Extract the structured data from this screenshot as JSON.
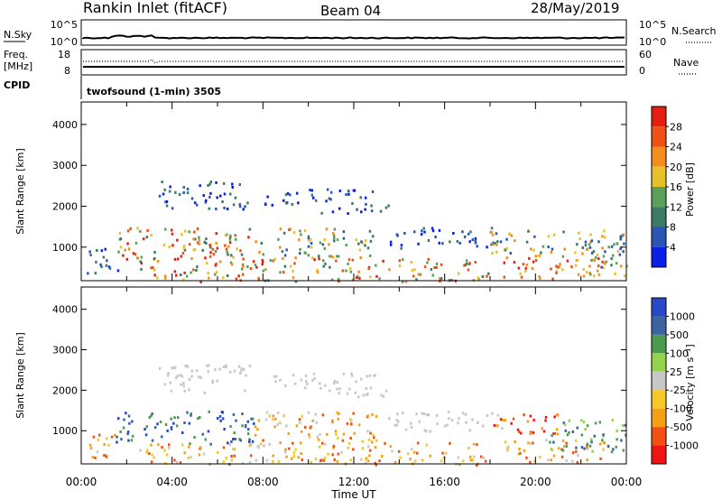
{
  "header": {
    "station": "Rankin Inlet (fitACF)",
    "beam": "Beam 04",
    "date": "28/May/2019"
  },
  "strip_panels": {
    "noise": {
      "left_label": "N.Sky",
      "left_ticks": [
        "10^5",
        "10^0"
      ],
      "right_label": "N.Search",
      "right_ticks": [
        "10^5",
        "10^0"
      ]
    },
    "freq": {
      "left_label_line1": "Freq.",
      "left_label_line2": "[MHz]",
      "left_ticks": [
        "18",
        "8"
      ],
      "right_label": "Nave",
      "right_ticks": [
        "60",
        "0"
      ]
    },
    "cpid": {
      "label": "CPID",
      "value": "twofsound (1-min) 3505"
    }
  },
  "colors": {
    "power_scale": [
      "#0a1fe8",
      "#2b55b4",
      "#3d7a64",
      "#5aa05a",
      "#e6c228",
      "#f58c1e",
      "#ee5014",
      "#e61e12"
    ],
    "velocity_scale": [
      "#f01414",
      "#f55014",
      "#f5a014",
      "#f5c828",
      "#c8c8c8",
      "#96d24b",
      "#4b9b50",
      "#3c64a0",
      "#2848c8"
    ]
  },
  "chart_data": [
    {
      "type": "heatmap",
      "title": "Power",
      "ylabel": "Slant Range [km]",
      "ylim": [
        180,
        4550
      ],
      "yticks": [
        1000,
        2000,
        3000,
        4000
      ],
      "xlim": [
        "00:00",
        "24:00"
      ],
      "colorbar": {
        "label": "Power [dB]",
        "ticks": [
          "4",
          "8",
          "12",
          "16",
          "20",
          "24",
          "28"
        ],
        "range": [
          0,
          32
        ]
      },
      "regions": [
        {
          "t0": 0.2,
          "t1": 1.6,
          "r0": 300,
          "r1": 1000,
          "level": "low"
        },
        {
          "t0": 1.5,
          "t1": 7.6,
          "r0": 700,
          "r1": 1500,
          "level": "high"
        },
        {
          "t0": 4.6,
          "t1": 6.0,
          "r0": 750,
          "r1": 1250,
          "level": "very-high"
        },
        {
          "t0": 2.5,
          "t1": 7.6,
          "r0": 180,
          "r1": 700,
          "level": "high"
        },
        {
          "t0": 3.4,
          "t1": 7.6,
          "r0": 1950,
          "r1": 2650,
          "level": "low"
        },
        {
          "t0": 8.0,
          "t1": 13.0,
          "r0": 2050,
          "r1": 2450,
          "level": "low"
        },
        {
          "t0": 10.5,
          "t1": 13.5,
          "r0": 1850,
          "r1": 2100,
          "level": "low"
        },
        {
          "t0": 7.6,
          "t1": 13.0,
          "r0": 750,
          "r1": 1500,
          "level": "mid"
        },
        {
          "t0": 7.6,
          "t1": 18.0,
          "r0": 180,
          "r1": 750,
          "level": "high"
        },
        {
          "t0": 13.5,
          "t1": 18.5,
          "r0": 1000,
          "r1": 1500,
          "level": "low"
        },
        {
          "t0": 18.0,
          "t1": 24.0,
          "r0": 800,
          "r1": 1450,
          "level": "mid"
        },
        {
          "t0": 18.5,
          "t1": 23.0,
          "r0": 250,
          "r1": 800,
          "level": "very-high"
        },
        {
          "t0": 22.0,
          "t1": 24.0,
          "r0": 300,
          "r1": 1300,
          "level": "mid"
        }
      ]
    },
    {
      "type": "heatmap",
      "title": "Velocity",
      "ylabel": "Slant Range [km]",
      "xlabel": "Time UT",
      "ylim": [
        180,
        4550
      ],
      "yticks": [
        1000,
        2000,
        3000,
        4000
      ],
      "x_ticks": [
        "00:00",
        "04:00",
        "08:00",
        "12:00",
        "16:00",
        "20:00",
        "00:00"
      ],
      "colorbar": {
        "label": "Velocity [m s⁻¹]",
        "ticks": [
          "1000",
          "500",
          "100",
          "25",
          "-25",
          "-100",
          "-500",
          "-1000"
        ]
      },
      "regions": [
        {
          "t0": 0.2,
          "t1": 1.6,
          "r0": 300,
          "r1": 1000,
          "vel": "neg"
        },
        {
          "t0": 1.5,
          "t1": 7.6,
          "r0": 700,
          "r1": 1500,
          "vel": "pos-strong"
        },
        {
          "t0": 2.5,
          "t1": 7.6,
          "r0": 180,
          "r1": 700,
          "vel": "neg"
        },
        {
          "t0": 3.4,
          "t1": 7.6,
          "r0": 1950,
          "r1": 2650,
          "vel": "zero"
        },
        {
          "t0": 8.0,
          "t1": 13.0,
          "r0": 2050,
          "r1": 2450,
          "vel": "zero"
        },
        {
          "t0": 10.5,
          "t1": 13.5,
          "r0": 1850,
          "r1": 2100,
          "vel": "zero"
        },
        {
          "t0": 7.6,
          "t1": 13.0,
          "r0": 750,
          "r1": 1500,
          "vel": "neg"
        },
        {
          "t0": 7.6,
          "t1": 18.0,
          "r0": 180,
          "r1": 750,
          "vel": "neg"
        },
        {
          "t0": 13.5,
          "t1": 18.5,
          "r0": 1000,
          "r1": 1500,
          "vel": "zero"
        },
        {
          "t0": 18.0,
          "t1": 21.0,
          "r0": 900,
          "r1": 1450,
          "vel": "neg-strong"
        },
        {
          "t0": 18.5,
          "t1": 23.0,
          "r0": 250,
          "r1": 800,
          "vel": "neg"
        },
        {
          "t0": 20.5,
          "t1": 24.0,
          "r0": 500,
          "r1": 1300,
          "vel": "pos"
        }
      ]
    }
  ]
}
